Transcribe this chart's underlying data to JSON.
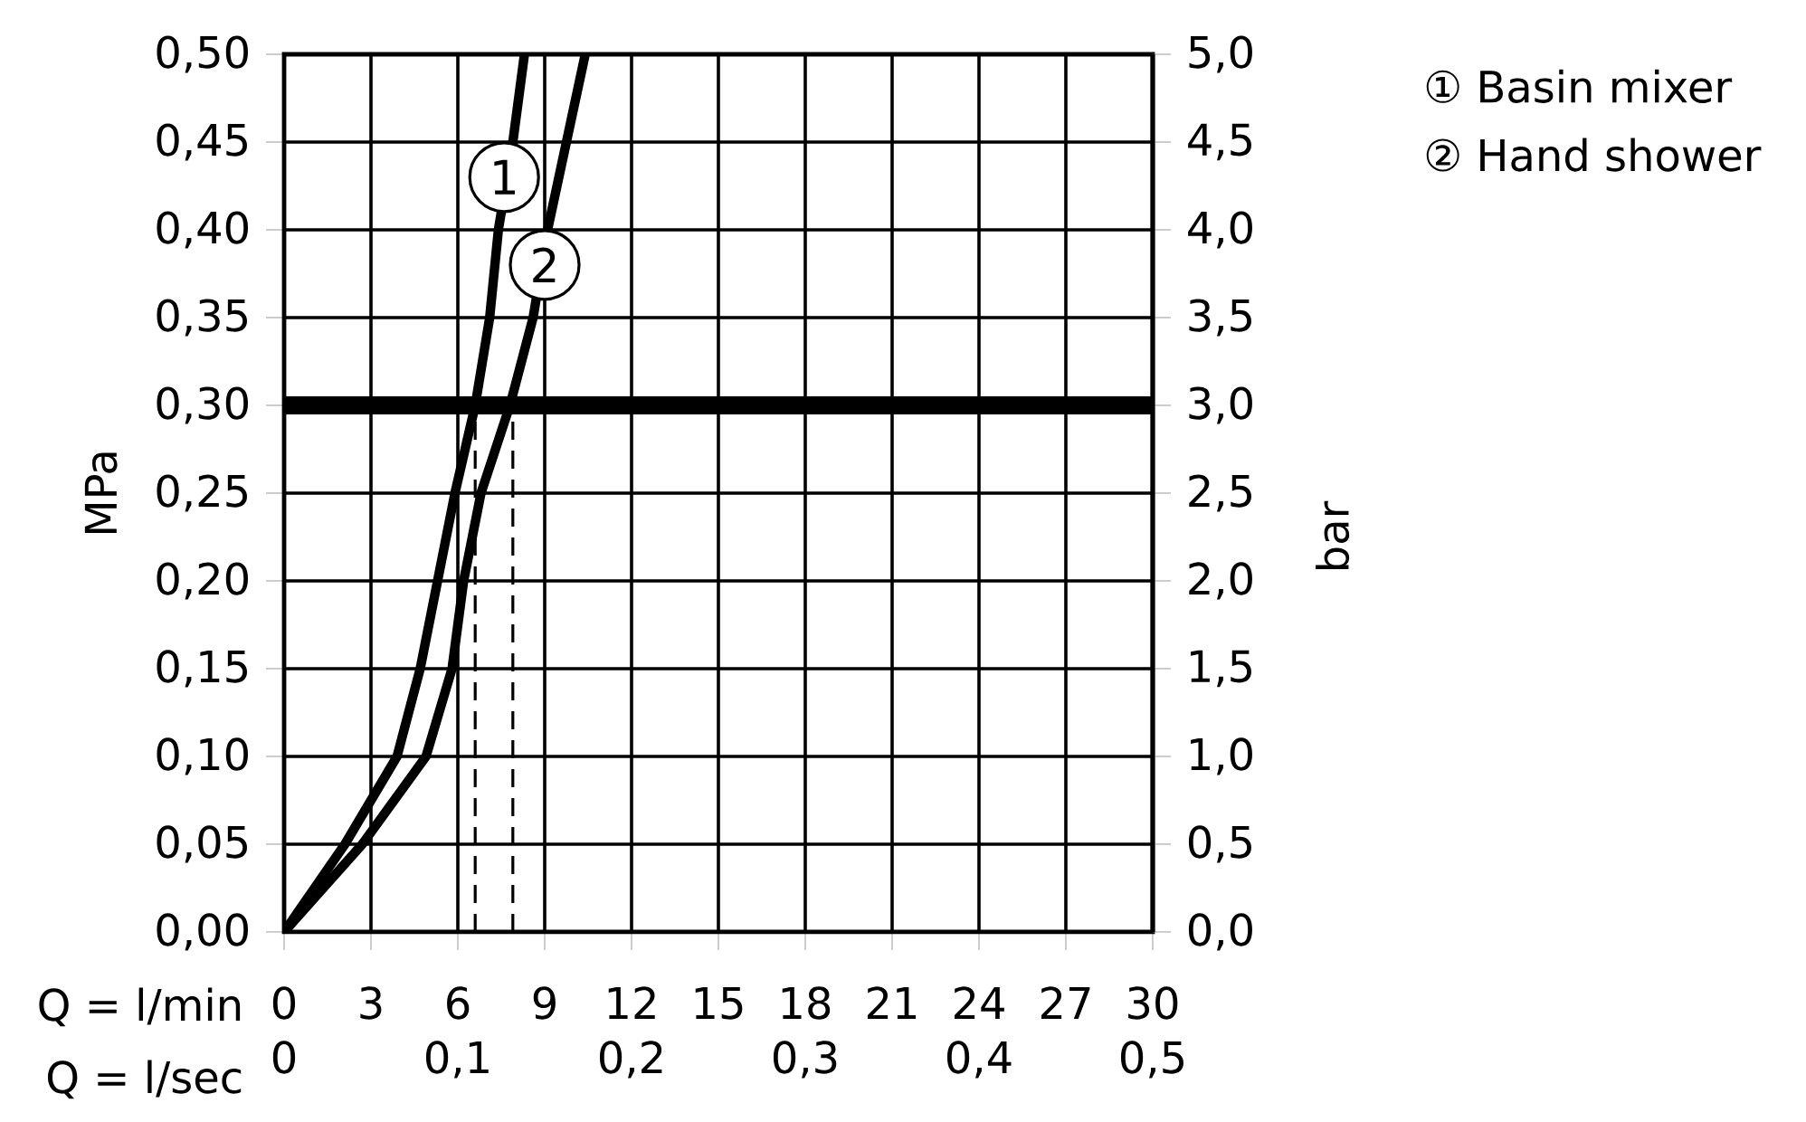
{
  "chart_data": {
    "type": "line",
    "xlabel": "Q = l/min",
    "x2label": "Q = l/sec",
    "ylabel": "MPa",
    "y2label": "bar",
    "xlim": [
      0,
      30
    ],
    "xticks": [
      0,
      3,
      6,
      9,
      12,
      15,
      18,
      21,
      24,
      27,
      30
    ],
    "x2lim": [
      0,
      0.5
    ],
    "x2ticks": [
      0,
      {
        "value": 0.1,
        "label": "0,1"
      },
      {
        "value": 0.2,
        "label": "0,2"
      },
      {
        "value": 0.3,
        "label": "0,3"
      },
      {
        "value": 0.4,
        "label": "0,4"
      },
      {
        "value": 0.5,
        "label": "0,5"
      }
    ],
    "ylim": [
      0,
      0.5
    ],
    "yticks": [
      {
        "value": 0,
        "label": "0,00"
      },
      {
        "value": 0.05,
        "label": "0,05"
      },
      {
        "value": 0.1,
        "label": "0,10"
      },
      {
        "value": 0.15,
        "label": "0,15"
      },
      {
        "value": 0.2,
        "label": "0,20"
      },
      {
        "value": 0.25,
        "label": "0,25"
      },
      {
        "value": 0.3,
        "label": "0,30"
      },
      {
        "value": 0.35,
        "label": "0,35"
      },
      {
        "value": 0.4,
        "label": "0,40"
      },
      {
        "value": 0.45,
        "label": "0,45"
      },
      {
        "value": 0.5,
        "label": "0,50"
      }
    ],
    "y2lim": [
      0,
      5
    ],
    "y2ticks": [
      {
        "value": 0,
        "label": "0,0"
      },
      {
        "value": 0.5,
        "label": "0,5"
      },
      {
        "value": 1,
        "label": "1,0"
      },
      {
        "value": 1.5,
        "label": "1,5"
      },
      {
        "value": 2,
        "label": "2,0"
      },
      {
        "value": 2.5,
        "label": "2,5"
      },
      {
        "value": 3,
        "label": "3,0"
      },
      {
        "value": 3.5,
        "label": "3,5"
      },
      {
        "value": 4,
        "label": "4,0"
      },
      {
        "value": 4.5,
        "label": "4,5"
      },
      {
        "value": 5,
        "label": "5,0"
      }
    ],
    "grid": true,
    "legend": "top right",
    "series": [
      {
        "name": "① Basin mixer",
        "color": "#000000",
        "x": [
          0,
          2.1,
          3.9,
          4.7,
          5.3,
          5.9,
          6.6,
          7.1,
          7.4,
          7.9,
          8.3
        ],
        "values": [
          0,
          0.05,
          0.1,
          0.15,
          0.2,
          0.25,
          0.3,
          0.35,
          0.4,
          0.45,
          0.5
        ]
      },
      {
        "name": "② Hand shower",
        "color": "#000000",
        "x": [
          0,
          2.7,
          4.9,
          5.8,
          6.2,
          6.8,
          7.8,
          8.6,
          9.1,
          9.75,
          10.4
        ],
        "values": [
          0,
          0.05,
          0.1,
          0.15,
          0.2,
          0.25,
          0.3,
          0.35,
          0.4,
          0.45,
          0.5
        ]
      },
      {
        "color": "#000000",
        "line_style": "dashed",
        "x": [
          6.6,
          6.6
        ],
        "values": [
          0,
          0.3
        ]
      },
      {
        "color": "#000000",
        "line_style": "dashed",
        "x": [
          7.9,
          7.9
        ],
        "values": [
          0,
          0.3
        ]
      }
    ],
    "ref_lines": [
      {
        "axis": "y",
        "value": 0.3,
        "color": "#000000"
      }
    ],
    "annotations": [
      {
        "text": "1",
        "x": 7.6,
        "y": 0.43
      },
      {
        "text": "2",
        "x": 9.0,
        "y": 0.38
      }
    ]
  }
}
